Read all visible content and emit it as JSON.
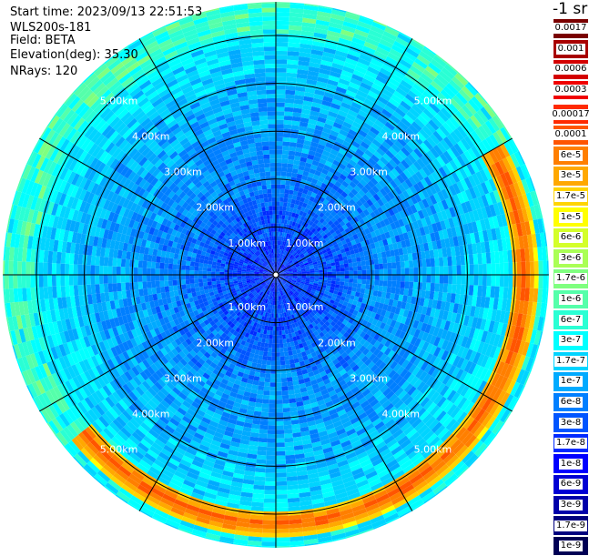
{
  "header": {
    "start_time": "Start time: 2023/09/13 22:51:53",
    "instrument": "WLS200s-181",
    "field": "Field: BETA",
    "elevation": "Elevation(deg): 35.30",
    "nrays": "NRays: 120"
  },
  "colorbar": {
    "unit_label": "-1 sr",
    "labels": [
      "0.0017",
      "0.001",
      "0.0006",
      "0.0003",
      "0.00017",
      "0.0001",
      "6e-5",
      "3e-5",
      "1.7e-5",
      "1e-5",
      "6e-6",
      "3e-6",
      "1.7e-6",
      "1e-6",
      "6e-7",
      "3e-7",
      "1.7e-7",
      "1e-7",
      "6e-8",
      "3e-8",
      "1.7e-8",
      "1e-8",
      "6e-9",
      "3e-9",
      "1.7e-9",
      "1e-9"
    ],
    "colors": [
      "#7a0000",
      "#a80000",
      "#d40000",
      "#f00000",
      "#ff2a00",
      "#ff5500",
      "#ff7f00",
      "#ffa800",
      "#ffd400",
      "#ffff00",
      "#d4ff2a",
      "#aaff55",
      "#7fff7f",
      "#55ffaa",
      "#2affd4",
      "#00ffff",
      "#00d4ff",
      "#00aaff",
      "#007fff",
      "#0055ff",
      "#002aff",
      "#0000ff",
      "#0000d4",
      "#0000aa",
      "#00007f",
      "#000055"
    ]
  },
  "chart_data": {
    "type": "heatmap",
    "projection": "polar (PPI)",
    "field": "BETA",
    "max_range_km": 5.7,
    "range_ring_labels": [
      "1.00km",
      "2.00km",
      "3.00km",
      "4.00km",
      "5.00km"
    ],
    "rings_km": [
      1,
      2,
      3,
      4,
      5
    ],
    "azimuth_spoke_spacing_deg": 30,
    "nrays": 120,
    "azimuth_sector_deg": 3,
    "range_gate_km": 0.09,
    "value_profile_by_range": [
      {
        "range_km": 0.0,
        "value": "1.7e-8"
      },
      {
        "range_km": 1.2,
        "value": "3e-8"
      },
      {
        "range_km": 2.0,
        "value": "6e-8"
      },
      {
        "range_km": 3.5,
        "value": "1e-7"
      },
      {
        "range_km": 4.5,
        "value": "1.7e-7"
      },
      {
        "range_km": 5.2,
        "value": "3e-7"
      }
    ],
    "enhanced_layer": {
      "description_value": "1.7e-5",
      "peak_value": "0.0001",
      "range_km": [
        4.9,
        5.4
      ],
      "azimuth_deg": [
        60,
        230
      ]
    }
  }
}
